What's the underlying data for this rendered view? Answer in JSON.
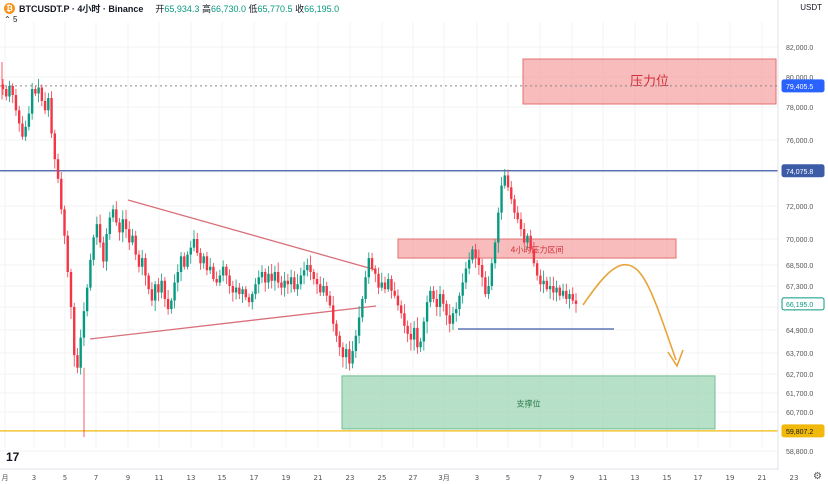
{
  "header": {
    "symbol": "BTCUSDT.P · 4小时 · Binance",
    "open_label": "开",
    "open": "65,934.3",
    "high_label": "高",
    "high": "66,730.0",
    "low_label": "低",
    "low": "65,770.5",
    "close_label": "收",
    "close": "66,195.0",
    "indicator": "5",
    "currency": "USDT",
    "logo": "17"
  },
  "colors": {
    "up": "#089981",
    "down": "#f23645",
    "resistance": "#f5a6a6",
    "support": "#9fd6b5",
    "hline": "#3d5ca8",
    "trend": "#d9707a",
    "arrow": "#e8a43a",
    "axis": "#f0b90b"
  },
  "chart_data": {
    "type": "candlestick",
    "y_ticks": [
      82000,
      80000,
      78000,
      76000,
      74000,
      72000,
      70000,
      68500,
      67300,
      66000,
      64900,
      63700,
      62700,
      61700,
      60700,
      59800,
      58800
    ],
    "y_tick_labels": [
      "82,000.0",
      "80,000.0",
      "78,000.0",
      "76,000.0",
      "74,000.0",
      "72,000.0",
      "70,000.0",
      "68,500.0",
      "67,300.0",
      "66,000.0",
      "64,900.0",
      "63,700.0",
      "62,700.0",
      "61,700.0",
      "60,700.0",
      "59,800.0",
      "58,800.0"
    ],
    "x_tick_labels": [
      "月",
      "3",
      "5",
      "7",
      "9",
      "11",
      "13",
      "15",
      "17",
      "19",
      "21",
      "23",
      "25",
      "27",
      "3月",
      "3",
      "5",
      "7",
      "9",
      "11",
      "13",
      "15",
      "17",
      "19",
      "21",
      "23"
    ],
    "price_labels": [
      {
        "value": 79405.5,
        "text": "79,405.5",
        "color": "#2962ff"
      },
      {
        "value": 74075.8,
        "text": "74,075.8",
        "color": "#3d5ca8"
      },
      {
        "value": 66195.0,
        "text": "66,195.0",
        "color": "#089981"
      },
      {
        "value": 59807.2,
        "text": "59,807.2",
        "color": "#f0b90b"
      }
    ],
    "horizontal_lines": [
      {
        "value": 79405.5,
        "style": "dotted",
        "color": "#888888"
      },
      {
        "value": 74075.8,
        "style": "solid",
        "color": "#3d5ca8"
      },
      {
        "value": 59807.2,
        "style": "solid",
        "color": "#f0b90b"
      }
    ],
    "zones": [
      {
        "label": "压力位",
        "top": 81200,
        "bottom": 78200,
        "color": "#f5a6a6"
      },
      {
        "label": "4小时压力区间",
        "top": 70000,
        "bottom": 68900,
        "color": "#f5a6a6"
      },
      {
        "label": "支撑位",
        "top": 62600,
        "bottom": 59900,
        "color": "#9fd6b5"
      }
    ],
    "close_series": [
      79200,
      78700,
      79400,
      78800,
      77800,
      77000,
      76200,
      76800,
      77600,
      79200,
      78900,
      79300,
      78400,
      77800,
      78600,
      76400,
      74800,
      73600,
      71800,
      70200,
      68100,
      66000,
      63600,
      63000,
      64500,
      65800,
      67200,
      68800,
      70100,
      70900,
      69800,
      68700,
      70300,
      71300,
      71800,
      71000,
      70400,
      71200,
      70600,
      69800,
      70200,
      69100,
      68400,
      68900,
      67900,
      67100,
      66400,
      67400,
      66900,
      67600,
      66500,
      65900,
      66400,
      67500,
      68100,
      69000,
      68400,
      69100,
      69500,
      70000,
      69200,
      68600,
      69000,
      68200,
      68400,
      67700,
      67500,
      67900,
      68400,
      67900,
      67300,
      66900,
      67200,
      66800,
      67100,
      66600,
      66300,
      66800,
      67400,
      67800,
      68100,
      67500,
      68000,
      67600,
      68100,
      67500,
      67200,
      67600,
      67400,
      67800,
      67100,
      67400,
      67900,
      68200,
      68500,
      68100,
      67700,
      67400,
      66900,
      67300,
      66700,
      66100,
      65200,
      64600,
      64000,
      63500,
      63900,
      63200,
      63800,
      64600,
      65500,
      66500,
      67800,
      68900,
      68300,
      68000,
      67200,
      67500,
      67100,
      67700,
      67000,
      66700,
      66100,
      65700,
      65100,
      64700,
      64400,
      65000,
      64000,
      64300,
      65300,
      66300,
      67000,
      66500,
      66000,
      66800,
      66200,
      65600,
      65200,
      65700,
      65900,
      66700,
      67500,
      68300,
      68800,
      69400,
      68900,
      68500,
      67800,
      66800,
      67300,
      68600,
      69800,
      71600,
      73200,
      73800,
      73100,
      72400,
      71600,
      71200,
      70600,
      69800,
      70200,
      69400,
      68600,
      67900,
      67400,
      67600,
      67100,
      67300,
      66900,
      67200,
      66700,
      67000,
      66500,
      66800,
      66400,
      66195
    ]
  }
}
